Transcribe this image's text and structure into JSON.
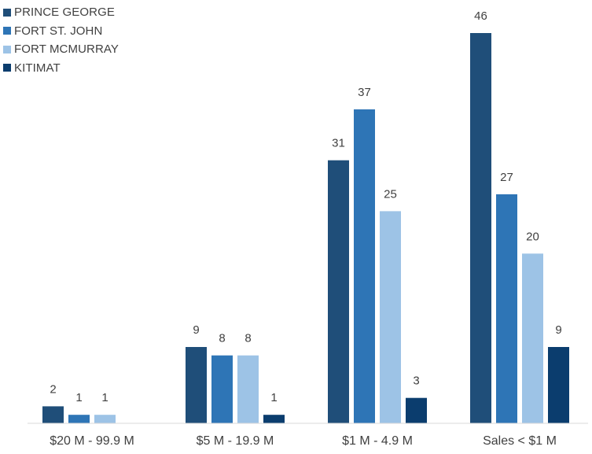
{
  "chart_data": {
    "type": "bar",
    "title": "",
    "xlabel": "",
    "ylabel": "",
    "ylim": [
      0,
      46
    ],
    "grid": false,
    "legend_position": "top-left",
    "categories": [
      "$20 M - 99.9 M",
      "$5 M - 19.9 M",
      "$1 M - 4.9 M",
      "Sales < $1 M"
    ],
    "series": [
      {
        "name": "PRINCE GEORGE",
        "color": "#1f4e79",
        "values": [
          2,
          9,
          31,
          46
        ]
      },
      {
        "name": "FORT ST. JOHN",
        "color": "#2e75b6",
        "values": [
          1,
          8,
          37,
          27
        ]
      },
      {
        "name": "FORT MCMURRAY",
        "color": "#9dc3e6",
        "values": [
          1,
          8,
          25,
          20
        ]
      },
      {
        "name": "KITIMAT",
        "color": "#0b3d6e",
        "values": [
          null,
          1,
          3,
          9
        ]
      }
    ]
  }
}
